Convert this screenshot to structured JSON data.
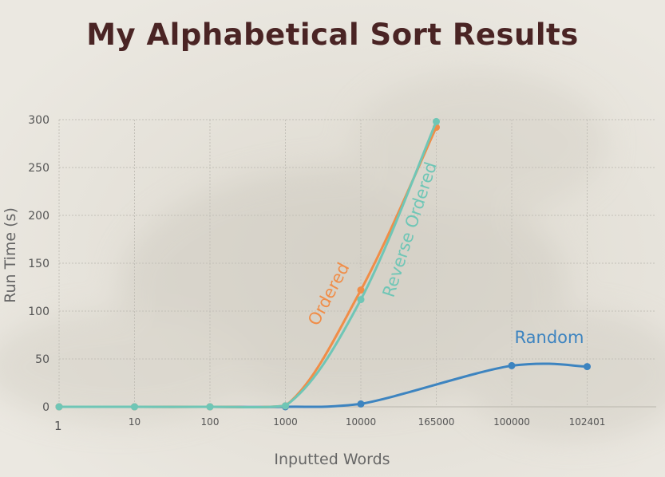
{
  "chart_data": {
    "type": "line",
    "title": "My Alphabetical Sort Results",
    "xlabel": "Inputted Words",
    "ylabel": "Run Time (s)",
    "categories": [
      "1",
      "10",
      "100",
      "1000",
      "10000",
      "165000",
      "100000",
      "102401"
    ],
    "ylim": [
      0,
      300
    ],
    "yticks": [
      0,
      50,
      100,
      150,
      200,
      250,
      300
    ],
    "grid": true,
    "series": [
      {
        "name": "Ordered",
        "color": "#f08d48",
        "values": [
          0,
          0,
          0,
          1,
          122,
          292,
          null,
          null
        ]
      },
      {
        "name": "Reverse Ordered",
        "color": "#6fc6b6",
        "values": [
          0,
          0,
          0,
          1,
          112,
          298,
          null,
          null
        ]
      },
      {
        "name": "Random",
        "color": "#3d84c0",
        "values": [
          0,
          0,
          0,
          0,
          3,
          null,
          43,
          42
        ]
      }
    ]
  }
}
